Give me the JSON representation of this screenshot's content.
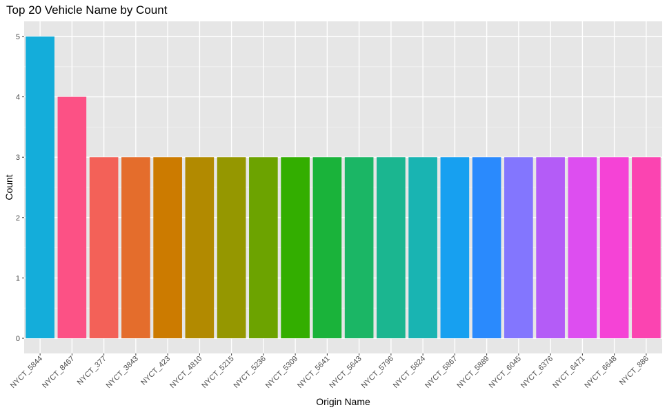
{
  "chart_data": {
    "type": "bar",
    "title": "Top 20 Vehicle Name by Count",
    "xlabel": "Origin Name",
    "ylabel": "Count",
    "ylim": [
      0,
      5.25
    ],
    "yticks": [
      0,
      1,
      2,
      3,
      4,
      5
    ],
    "grid": true,
    "legend": "none",
    "categories": [
      "NYCT_5844",
      "NYCT_8467",
      "NYCT_377",
      "NYCT_3843",
      "NYCT_423",
      "NYCT_4810",
      "NYCT_5215",
      "NYCT_5236",
      "NYCT_5309",
      "NYCT_5641",
      "NYCT_5643",
      "NYCT_5796",
      "NYCT_5824",
      "NYCT_5867",
      "NYCT_5889",
      "NYCT_6045",
      "NYCT_6376",
      "NYCT_6471",
      "NYCT_6648",
      "NYCT_886"
    ],
    "values": [
      5,
      4,
      3,
      3,
      3,
      3,
      3,
      3,
      3,
      3,
      3,
      3,
      3,
      3,
      3,
      3,
      3,
      3,
      3,
      3
    ],
    "colors": [
      "#14ADDA",
      "#FC5185",
      "#F36158",
      "#E46D2C",
      "#CC7B00",
      "#B28A00",
      "#959700",
      "#6CA300",
      "#33AE00",
      "#1AB33A",
      "#1BB665",
      "#1BB690",
      "#19B4B2",
      "#17A0F0",
      "#2A8AFD",
      "#8376FE",
      "#B45CF7",
      "#DD4EF0",
      "#F543D6",
      "#FB44B1"
    ]
  }
}
